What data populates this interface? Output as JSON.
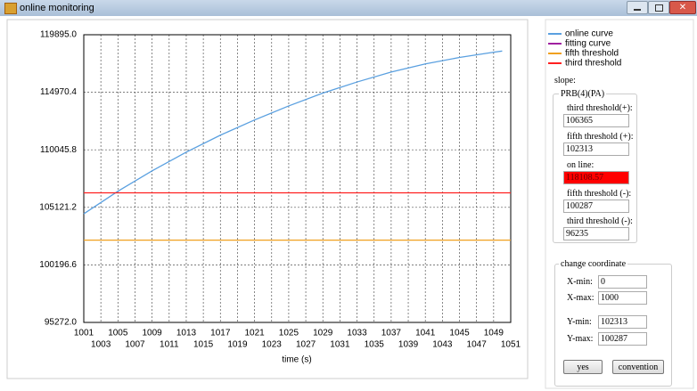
{
  "window": {
    "title": "online monitoring"
  },
  "chart_data": {
    "type": "line",
    "x_label": "time (s)",
    "xlim": [
      1001,
      1051
    ],
    "xticks": [
      1001,
      1003,
      1005,
      1007,
      1009,
      1011,
      1013,
      1015,
      1017,
      1019,
      1021,
      1023,
      1025,
      1027,
      1029,
      1031,
      1033,
      1035,
      1037,
      1039,
      1041,
      1043,
      1045,
      1047,
      1049,
      1051
    ],
    "ylim": [
      95272,
      119895
    ],
    "yticks": [
      {
        "value": 95272,
        "label": "95272.0"
      },
      {
        "value": 100196.6,
        "label": "100196.6"
      },
      {
        "value": 105121.2,
        "label": "105121.2"
      },
      {
        "value": 110045.8,
        "label": "110045.8"
      },
      {
        "value": 114970.4,
        "label": "114970.4"
      },
      {
        "value": 119895,
        "label": "119895.0"
      }
    ],
    "grid": true,
    "legend": "right",
    "series": [
      {
        "name": "online curve",
        "color": "#5aa0e0",
        "x": [
          1001,
          1005,
          1009,
          1013,
          1017,
          1021,
          1025,
          1029,
          1033,
          1037,
          1041,
          1045,
          1049,
          1050
        ],
        "values": [
          104570,
          106500,
          108250,
          109850,
          111300,
          112600,
          113800,
          114900,
          115850,
          116700,
          117400,
          117950,
          118400,
          118500
        ]
      },
      {
        "name": "fitting curve",
        "color": "#a020a0",
        "x": [],
        "values": []
      },
      {
        "name": "fifth threshold",
        "color": "#f0a020",
        "x": [
          1001,
          1051
        ],
        "values": [
          102313,
          102313
        ]
      },
      {
        "name": "third threshold",
        "color": "#ff2020",
        "x": [
          1001,
          1051
        ],
        "values": [
          106365,
          106365
        ]
      }
    ]
  },
  "panel": {
    "slope_label": "slope:",
    "group_title": "PRB(4)(PA)",
    "fields": [
      {
        "label": "third threshold(+):",
        "value": "106365"
      },
      {
        "label": "fifth threshold (+):",
        "value": "102313"
      },
      {
        "label": "on line:",
        "value": "118108.57",
        "highlight": "#ff0000"
      },
      {
        "label": "fifth threshold (-):",
        "value": "100287"
      },
      {
        "label": "third threshold (-):",
        "value": "96235"
      }
    ]
  },
  "coordinate": {
    "title": "change coordinate",
    "fields": [
      {
        "label": "X-min:",
        "value": "0"
      },
      {
        "label": "X-max:",
        "value": "1000"
      },
      {
        "label": "Y-min:",
        "value": "102313"
      },
      {
        "label": "Y-max:",
        "value": "100287"
      }
    ],
    "buttons": [
      "yes",
      "convention"
    ]
  }
}
